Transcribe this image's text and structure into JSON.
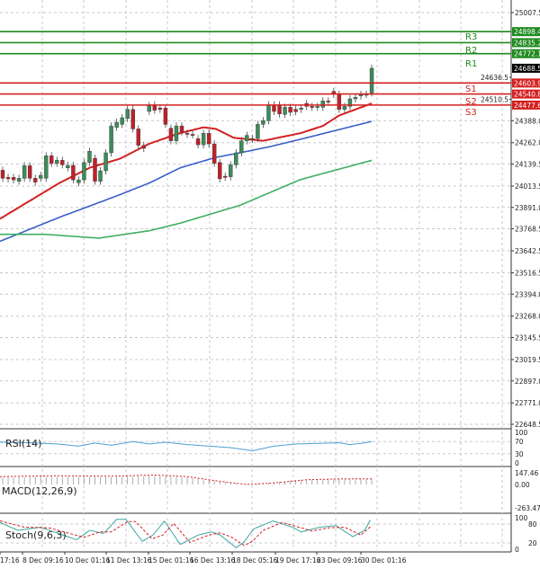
{
  "chart_data": {
    "type": "candlestick",
    "price_axis": {
      "ylim": [
        22648.5,
        25007.5
      ],
      "ticks": [
        "25007.5",
        "24388.0",
        "24262.0",
        "24139.5",
        "24013.5",
        "23891.0",
        "23768.5",
        "23642.5",
        "23516.5",
        "23394.0",
        "23268.0",
        "23145.5",
        "23019.5",
        "22897.0",
        "22771.0",
        "22648.5"
      ],
      "hidden_ticks": [
        "24636.5",
        "24510.5"
      ]
    },
    "time_labels": [
      "17:16",
      "8 Dec 09:16",
      "10 Dec 01:16",
      "11 Dec 13:16",
      "15 Dec 01:16",
      "16 Dec 13:16",
      "18 Dec 05:16",
      "19 Dec 17:16",
      "23 Dec 09:16",
      "30 Dec 01:16"
    ],
    "candles_open_close": [
      [
        24104,
        24058
      ],
      [
        24063,
        24055
      ],
      [
        24063,
        24049
      ],
      [
        24041,
        24058
      ],
      [
        24058,
        24130
      ],
      [
        24130,
        24058
      ],
      [
        24058,
        24036
      ],
      [
        24058,
        24075
      ],
      [
        24058,
        24187
      ],
      [
        24187,
        24144
      ],
      [
        24144,
        24161
      ],
      [
        24161,
        24135
      ],
      [
        24118,
        24132
      ],
      [
        24132,
        24049
      ],
      [
        24032,
        24049
      ],
      [
        24049,
        24149
      ],
      [
        24149,
        24213
      ],
      [
        24173,
        24041
      ],
      [
        24041,
        24101
      ],
      [
        24101,
        24204
      ],
      [
        24204,
        24358
      ],
      [
        24350,
        24379
      ],
      [
        24367,
        24405
      ],
      [
        24401,
        24453
      ],
      [
        24453,
        24341
      ],
      [
        24341,
        24247
      ],
      [
        24247,
        24230
      ],
      [
        24441,
        24475
      ],
      [
        24479,
        24448
      ],
      [
        24461,
        24453
      ],
      [
        24461,
        24367
      ],
      [
        24345,
        24273
      ],
      [
        24273,
        24358
      ],
      [
        24358,
        24324
      ],
      [
        24316,
        24310
      ],
      [
        24310,
        24307
      ],
      [
        24285,
        24250
      ],
      [
        24250,
        24316
      ],
      [
        24316,
        24255
      ],
      [
        24255,
        24144
      ],
      [
        24149,
        24055
      ],
      [
        24070,
        24063
      ],
      [
        24067,
        24135
      ],
      [
        24135,
        24204
      ],
      [
        24204,
        24273
      ],
      [
        24273,
        24304
      ],
      [
        24286,
        24281
      ],
      [
        24286,
        24367
      ],
      [
        24367,
        24388
      ],
      [
        24388,
        24479
      ],
      [
        24479,
        24441
      ],
      [
        24479,
        24427
      ],
      [
        24424,
        24465
      ],
      [
        24465,
        24436
      ],
      [
        24453,
        24439
      ],
      [
        24453,
        24461
      ],
      [
        24487,
        24470
      ],
      [
        24470,
        24465
      ],
      [
        24465,
        24470
      ],
      [
        24465,
        24501
      ],
      [
        24501,
        24496
      ],
      [
        24556,
        24539
      ],
      [
        24539,
        24453
      ],
      [
        24453,
        24470
      ],
      [
        24470,
        24513
      ],
      [
        24513,
        24522
      ],
      [
        24530,
        24539
      ],
      [
        24539,
        24540
      ],
      [
        24547,
        24688.5
      ]
    ],
    "moving_averages": [
      {
        "color": "#d42020",
        "points": [
          [
            -0.5,
            23826
          ],
          [
            5,
            23929
          ],
          [
            10.5,
            24032
          ],
          [
            16,
            24118
          ],
          [
            21.6,
            24170
          ],
          [
            27,
            24256
          ],
          [
            32.6,
            24316
          ],
          [
            37,
            24350
          ],
          [
            39.3,
            24341
          ],
          [
            42.6,
            24290
          ],
          [
            48,
            24273
          ],
          [
            54.8,
            24316
          ],
          [
            59,
            24358
          ],
          [
            62,
            24418
          ],
          [
            68,
            24487
          ]
        ]
      },
      {
        "color": "#3a5fc8",
        "points": [
          [
            -0.5,
            23697
          ],
          [
            10.5,
            23835
          ],
          [
            21.6,
            23964
          ],
          [
            27.1,
            24032
          ],
          [
            32.7,
            24118
          ],
          [
            39.3,
            24178
          ],
          [
            43.7,
            24204
          ],
          [
            49.2,
            24239
          ],
          [
            54.8,
            24281
          ],
          [
            60.3,
            24324
          ],
          [
            68,
            24384
          ]
        ]
      },
      {
        "color": "#3fae62",
        "points": [
          [
            -0.5,
            23737
          ],
          [
            7.8,
            23737
          ],
          [
            17.7,
            23715
          ],
          [
            27.1,
            23758
          ],
          [
            32.7,
            23801
          ],
          [
            43.7,
            23903
          ],
          [
            54.8,
            24050
          ],
          [
            68,
            24161
          ]
        ]
      }
    ],
    "pivots": [
      {
        "name": "R3",
        "value": "24898.4",
        "color": "#1e8a1e"
      },
      {
        "name": "R2",
        "value": "24835.2",
        "color": "#1e8a1e"
      },
      {
        "name": "R1",
        "value": "24772.1",
        "color": "#1e8a1e"
      },
      {
        "name": "S1",
        "value": "24603.9",
        "color": "#d42020"
      },
      {
        "name": "S2",
        "value": "24540.8",
        "color": "#d42020"
      },
      {
        "name": "S3",
        "value": "24477.6",
        "color": "#d42020"
      }
    ],
    "current_price": "24688.5",
    "colors": {
      "up": "#3c8c5a",
      "down": "#c0202a",
      "grid": "#c8c8c8"
    },
    "rsi": {
      "label": "RSI(14)",
      "levels": [
        "100",
        "70",
        "30",
        "0"
      ],
      "points": [
        [
          -0.5,
          68
        ],
        [
          5,
          66
        ],
        [
          10,
          62
        ],
        [
          14,
          55
        ],
        [
          17,
          65
        ],
        [
          20,
          58
        ],
        [
          24,
          70
        ],
        [
          27,
          62
        ],
        [
          30,
          68
        ],
        [
          34,
          60
        ],
        [
          38,
          55
        ],
        [
          42,
          50
        ],
        [
          46,
          40
        ],
        [
          50,
          55
        ],
        [
          54,
          62
        ],
        [
          58,
          64
        ],
        [
          62,
          66
        ],
        [
          64,
          60
        ],
        [
          66,
          64
        ],
        [
          68,
          70
        ]
      ]
    },
    "macd": {
      "label": "MACD(12,26,9)",
      "ticks": [
        "147.46",
        "0.00",
        "-263.47"
      ],
      "hist_points": [
        [
          -0.5,
          90
        ],
        [
          10,
          100
        ],
        [
          20,
          95
        ],
        [
          28,
          110
        ],
        [
          34,
          90
        ],
        [
          40,
          40
        ],
        [
          44,
          5
        ],
        [
          48,
          15
        ],
        [
          54,
          55
        ],
        [
          62,
          70
        ],
        [
          68,
          70
        ]
      ],
      "signal_points": [
        [
          -0.5,
          100
        ],
        [
          10,
          110
        ],
        [
          20,
          105
        ],
        [
          28,
          120
        ],
        [
          34,
          100
        ],
        [
          40,
          40
        ],
        [
          45,
          0
        ],
        [
          50,
          20
        ],
        [
          56,
          60
        ],
        [
          62,
          70
        ],
        [
          68,
          70
        ]
      ]
    },
    "stoch": {
      "label": "Stoch(9,6,3)",
      "levels": [
        "100",
        "80",
        "20",
        "0"
      ],
      "k_points": [
        [
          -0.5,
          85
        ],
        [
          2.8,
          60
        ],
        [
          7,
          70
        ],
        [
          13.6,
          30
        ],
        [
          16,
          60
        ],
        [
          18.6,
          50
        ],
        [
          21,
          95
        ],
        [
          22.7,
          95
        ],
        [
          25.7,
          25
        ],
        [
          27.7,
          45
        ],
        [
          29.8,
          90
        ],
        [
          32.7,
          15
        ],
        [
          36,
          45
        ],
        [
          38.5,
          55
        ],
        [
          40.1,
          45
        ],
        [
          43,
          5
        ],
        [
          44.3,
          20
        ],
        [
          46.3,
          65
        ],
        [
          49.8,
          90
        ],
        [
          53.4,
          70
        ],
        [
          55,
          55
        ],
        [
          58.4,
          70
        ],
        [
          61.4,
          75
        ],
        [
          64.5,
          40
        ],
        [
          66.7,
          60
        ],
        [
          67.8,
          95
        ]
      ],
      "d_points": [
        [
          -0.5,
          90
        ],
        [
          4,
          70
        ],
        [
          8.5,
          68
        ],
        [
          15,
          38
        ],
        [
          18,
          55
        ],
        [
          20,
          55
        ],
        [
          23,
          88
        ],
        [
          24.5,
          88
        ],
        [
          27.5,
          33
        ],
        [
          29.5,
          45
        ],
        [
          31.5,
          82
        ],
        [
          34.5,
          22
        ],
        [
          38,
          45
        ],
        [
          40,
          52
        ],
        [
          42,
          40
        ],
        [
          44.5,
          12
        ],
        [
          46,
          25
        ],
        [
          48,
          60
        ],
        [
          51.5,
          85
        ],
        [
          55,
          68
        ],
        [
          57,
          58
        ],
        [
          60,
          68
        ],
        [
          63,
          70
        ],
        [
          66,
          45
        ],
        [
          68,
          75
        ]
      ]
    }
  }
}
